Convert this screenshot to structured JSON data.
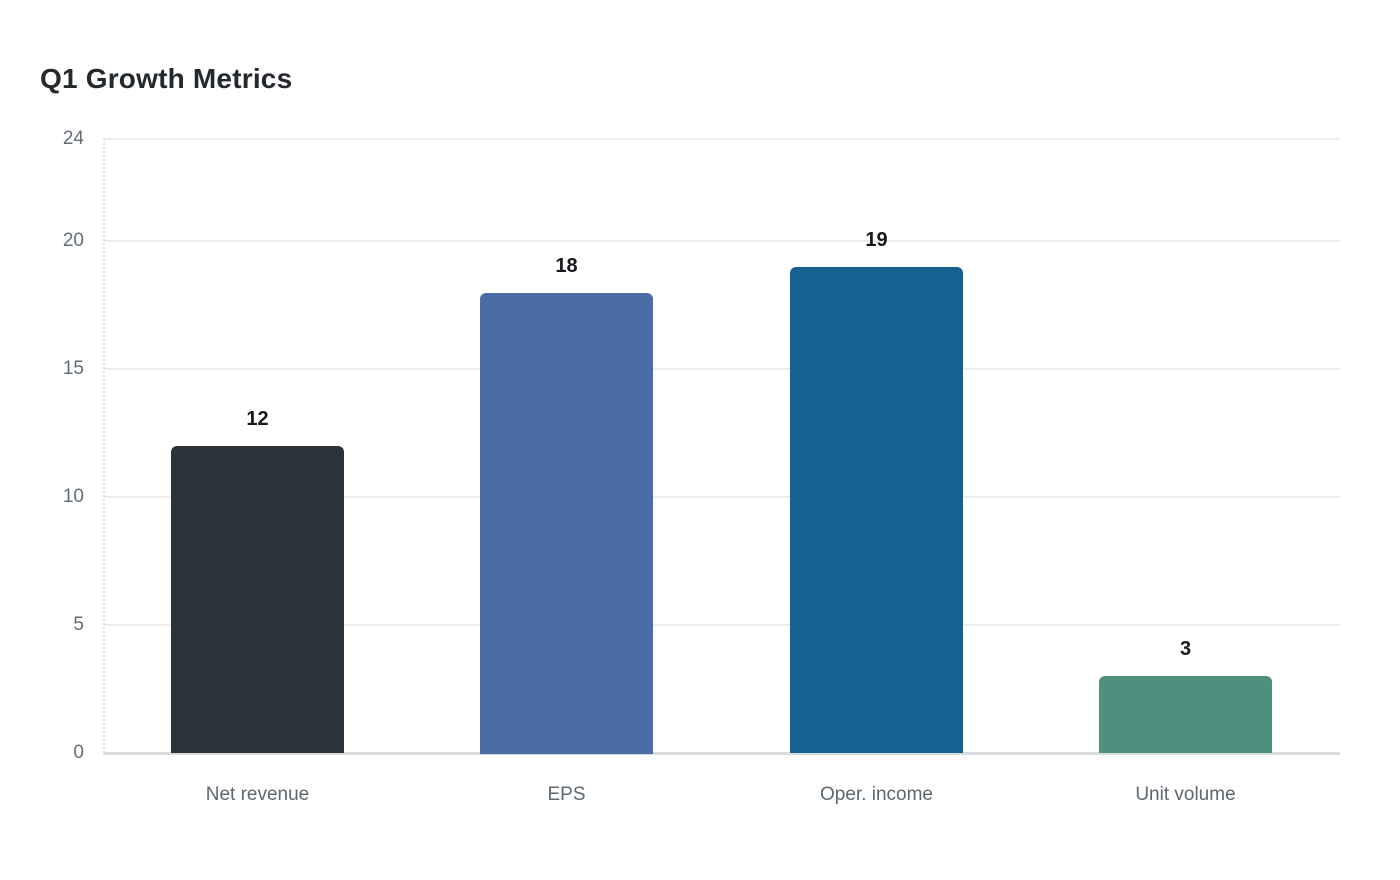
{
  "chart_data": {
    "type": "bar",
    "title": "Q1 Growth Metrics",
    "categories": [
      "Net revenue",
      "EPS",
      "Oper. income",
      "Unit volume"
    ],
    "values": [
      12,
      18,
      19,
      3
    ],
    "bar_colors": [
      "#2b3338",
      "#4a6da6",
      "#176190",
      "#4e8f7d"
    ],
    "value_label_color": "#16191d",
    "yticks": [
      0,
      5,
      10,
      15,
      20,
      24
    ],
    "ylim": [
      0,
      24
    ],
    "xlabel": "",
    "ylabel": "",
    "grid": true,
    "legend": "none",
    "background_color": "#ffffff",
    "gridline_color": "#ececec",
    "axis_line_color": "#d8dbde",
    "tick_label_color": "#626d78",
    "category_label_color": "#5c6771",
    "title_color": "#24292e"
  }
}
